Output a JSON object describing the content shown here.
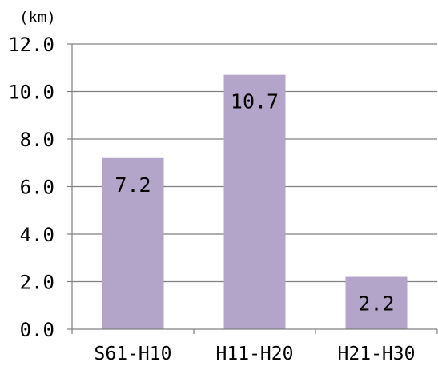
{
  "chart_data": {
    "type": "bar",
    "unit": "(km)",
    "categories": [
      "S61-H10",
      "H11-H20",
      "H21-H30"
    ],
    "values": [
      7.2,
      10.7,
      2.2
    ],
    "data_labels": [
      "7.2",
      "10.7",
      "2.2"
    ],
    "ylim": [
      0,
      12
    ],
    "yticks": [
      0,
      2,
      4,
      6,
      8,
      10,
      12
    ],
    "ytick_labels": [
      "0.0",
      "2.0",
      "4.0",
      "6.0",
      "8.0",
      "10.0",
      "12.0"
    ],
    "title": "",
    "xlabel": "",
    "ylabel": "",
    "grid": true,
    "legend": "none",
    "bar_color": "#B3A4C9",
    "grid_color": "#808080",
    "axis_color": "#808080"
  }
}
